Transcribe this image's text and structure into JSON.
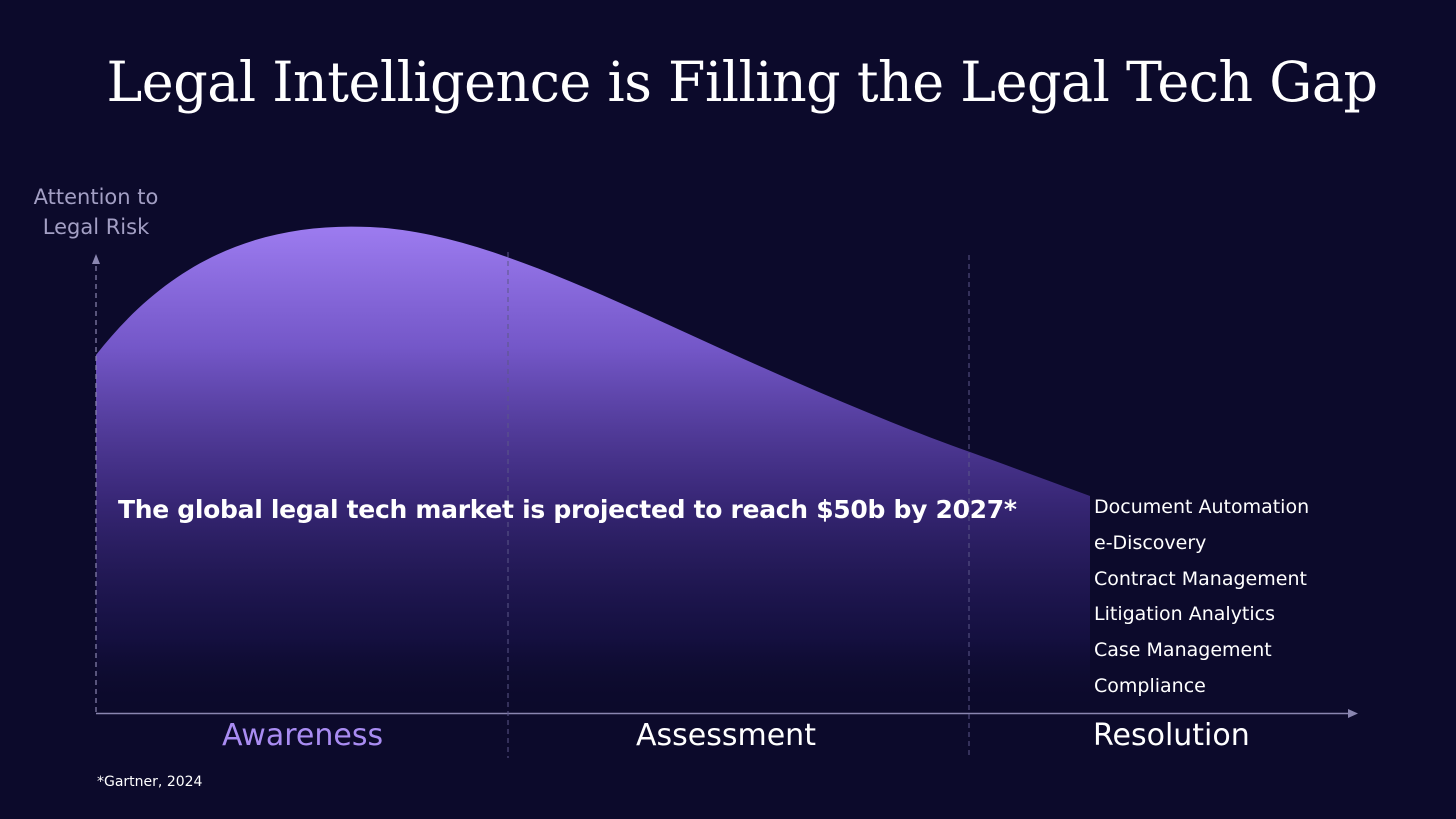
{
  "title": "Legal Intelligence is Filling the Legal Tech Gap",
  "y_axis_label": {
    "line1": "Attention to",
    "line2": "Legal Risk"
  },
  "headline": "The global legal tech market is projected to reach $50b by 2027*",
  "tech_categories": [
    "Document Automation",
    "e-Discovery",
    "Contract Management",
    "Litigation Analytics",
    "Case Management",
    "Compliance"
  ],
  "phases": [
    "Awareness",
    "Assessment",
    "Resolution"
  ],
  "footnote": "*Gartner, 2024",
  "colors": {
    "background": "#0c0a2b",
    "curve_fill_top": "#9d7cf0",
    "awareness_label": "#a98cf2",
    "axis": "#8a86b0"
  }
}
